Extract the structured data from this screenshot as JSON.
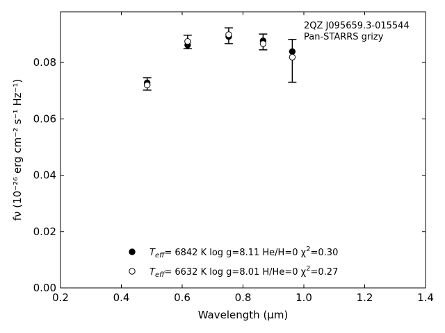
{
  "chart_data": {
    "type": "scatter",
    "annotation": [
      "2QZ J095659.3-015544",
      "Pan-STARRS grizy"
    ],
    "xlabel": "Wavelength (μm)",
    "ylabel": "fν (10⁻²⁶ erg cm⁻² s⁻¹ Hz⁻¹)",
    "xlim": [
      0.2,
      1.4
    ],
    "ylim": [
      0.0,
      0.098
    ],
    "xticks": [
      "0.2",
      "0.4",
      "0.6",
      "0.8",
      "1.0",
      "1.2",
      "1.4"
    ],
    "yticks": [
      "0.00",
      "0.02",
      "0.04",
      "0.06",
      "0.08"
    ],
    "observed": {
      "x": [
        0.485,
        0.618,
        0.753,
        0.866,
        0.962
      ],
      "y": [
        0.0724,
        0.0873,
        0.0895,
        0.0873,
        0.0806
      ],
      "yerr": [
        0.0022,
        0.0024,
        0.0028,
        0.0028,
        0.0076
      ]
    },
    "series": [
      {
        "marker": "filled",
        "label": "T_eff= 6842 K  log g=8.11  He/H=0  χ²=0.30",
        "x": [
          0.485,
          0.618,
          0.753,
          0.866,
          0.962
        ],
        "y": [
          0.0728,
          0.0862,
          0.0892,
          0.0877,
          0.0839
        ]
      },
      {
        "marker": "open",
        "label": "T_eff= 6632 K  log g=8.01  H/He=0  χ²=0.27",
        "x": [
          0.485,
          0.618,
          0.753,
          0.866,
          0.962
        ],
        "y": [
          0.072,
          0.0875,
          0.0899,
          0.0867,
          0.0819
        ]
      }
    ],
    "legend": [
      {
        "marker": "filled",
        "teff_label": "T",
        "teff_sub": "eff",
        "rest": "=  6842 K  log g=8.11  He/H=0  χ",
        "sup": "2",
        "tail": "=0.30"
      },
      {
        "marker": "open",
        "teff_label": "T",
        "teff_sub": "eff",
        "rest": "=  6632 K  log g=8.01  H/He=0  χ",
        "sup": "2",
        "tail": "=0.27"
      }
    ],
    "legend_position": "lower-center",
    "grid": false
  }
}
